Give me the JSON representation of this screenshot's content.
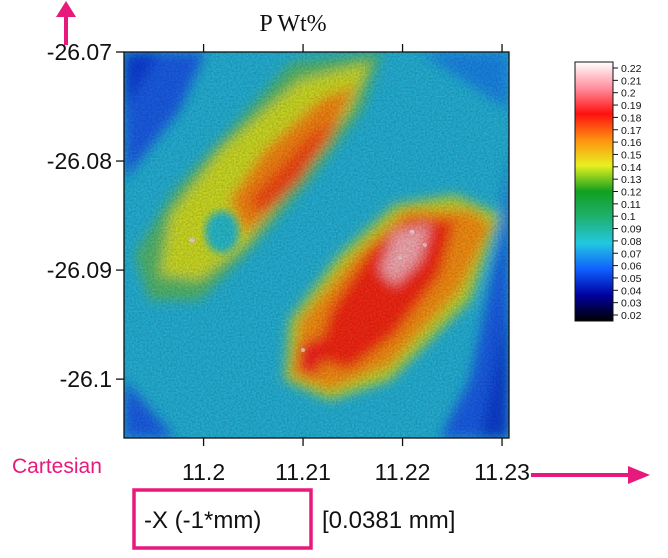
{
  "chart_data": {
    "type": "heatmap",
    "title": "P Wt%",
    "xlabel_axis": "-X (-1*mm)",
    "xlabel_extra": "[0.0381 mm]",
    "xticks": [
      "11.2",
      "11.21",
      "11.22",
      "11.23"
    ],
    "xtick_values": [
      11.2,
      11.21,
      11.22,
      11.23
    ],
    "xlim": [
      11.192,
      11.2307
    ],
    "yticks": [
      "-26.07",
      "-26.08",
      "-26.09",
      "-26.1"
    ],
    "ytick_values": [
      -26.07,
      -26.08,
      -26.09,
      -26.1
    ],
    "ylim": [
      -26.1054,
      -26.07
    ],
    "colorbar": {
      "min": 0.02,
      "max": 0.22,
      "ticks": [
        "0.22",
        "0.21",
        "0.2",
        "0.19",
        "0.18",
        "0.17",
        "0.16",
        "0.15",
        "0.14",
        "0.13",
        "0.12",
        "0.11",
        "0.1",
        "0.09",
        "0.08",
        "0.07",
        "0.06",
        "0.05",
        "0.04",
        "0.03",
        "0.02"
      ],
      "stops": [
        "#000000",
        "#0000a0",
        "#1060ff",
        "#22c8e0",
        "#20b070",
        "#10a020",
        "#e8f020",
        "#ff9010",
        "#ff1010",
        "#ff90a0",
        "#ffffff"
      ]
    },
    "regions": [
      {
        "name": "upper-left band",
        "level": 0.15
      },
      {
        "name": "lower-right band",
        "level": 0.18
      },
      {
        "name": "background",
        "level": 0.07
      }
    ]
  },
  "annotations": {
    "coordinate_system": "Cartesian",
    "accent_color": "#e8197c"
  }
}
